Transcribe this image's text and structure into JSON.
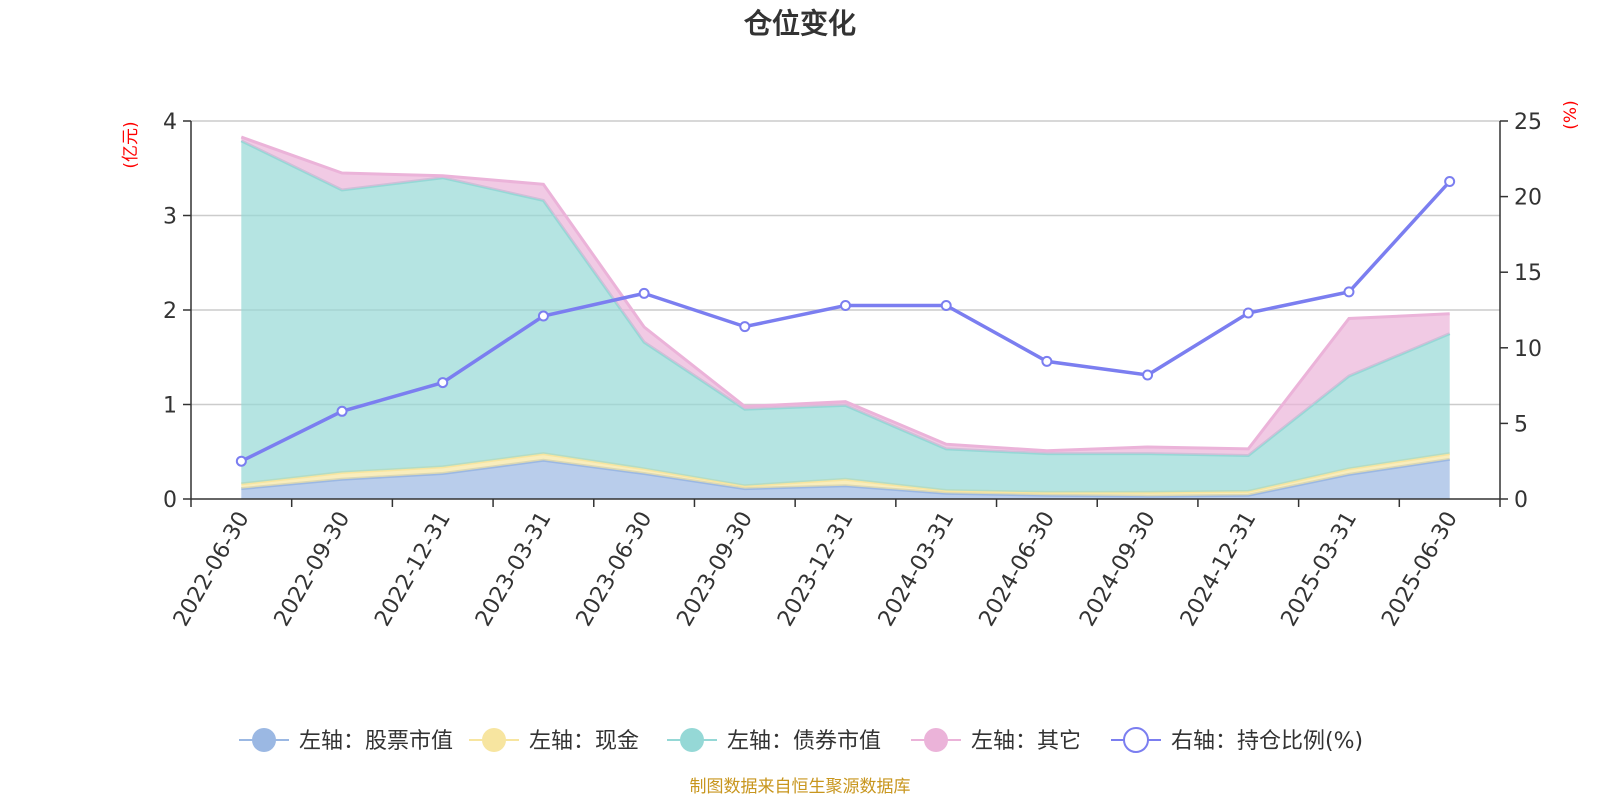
{
  "chart_data": {
    "type": "area",
    "title": "仓位变化",
    "left_axis_unit": "(亿元)",
    "right_axis_unit": "(%)",
    "x": [
      "2022-06-30",
      "2022-09-30",
      "2022-12-31",
      "2023-03-31",
      "2023-06-30",
      "2023-09-30",
      "2023-12-31",
      "2024-03-31",
      "2024-06-30",
      "2024-09-30",
      "2024-12-31",
      "2025-03-31",
      "2025-06-30"
    ],
    "y_left_range": [
      0,
      4
    ],
    "y_left_ticks": [
      "0",
      "1",
      "2",
      "3",
      "4"
    ],
    "y_right_range": [
      0,
      25
    ],
    "y_right_ticks": [
      "0",
      "5",
      "10",
      "15",
      "20",
      "25"
    ],
    "grid": true,
    "stacked": true,
    "series": [
      {
        "name": "左轴：股票市值",
        "axis": "left",
        "color": "#9bb8e3",
        "values": [
          0.11,
          0.21,
          0.27,
          0.41,
          0.27,
          0.11,
          0.14,
          0.06,
          0.04,
          0.03,
          0.04,
          0.26,
          0.42
        ]
      },
      {
        "name": "左轴：现金",
        "axis": "left",
        "color": "#f7e5a0",
        "values": [
          0.05,
          0.07,
          0.07,
          0.07,
          0.05,
          0.03,
          0.07,
          0.03,
          0.03,
          0.04,
          0.04,
          0.06,
          0.06
        ]
      },
      {
        "name": "左轴：债券市值",
        "axis": "left",
        "color": "#95d8d6",
        "values": [
          3.63,
          2.99,
          3.06,
          2.68,
          1.34,
          0.81,
          0.78,
          0.44,
          0.41,
          0.41,
          0.38,
          0.98,
          1.27
        ]
      },
      {
        "name": "左轴：其它",
        "axis": "left",
        "color": "#ebb3d9",
        "values": [
          0.04,
          0.18,
          0.02,
          0.17,
          0.16,
          0.03,
          0.04,
          0.05,
          0.03,
          0.07,
          0.07,
          0.61,
          0.21
        ]
      },
      {
        "name": "右轴：持仓比例(%)",
        "axis": "right",
        "type": "line",
        "color": "#7b7ef0",
        "values": [
          2.5,
          5.8,
          7.7,
          12.1,
          13.6,
          11.4,
          12.8,
          12.8,
          9.1,
          8.2,
          12.3,
          13.7,
          21.0
        ]
      }
    ],
    "legend_position": "bottom"
  },
  "footer": {
    "source": "制图数据来自恒生聚源数据库"
  }
}
